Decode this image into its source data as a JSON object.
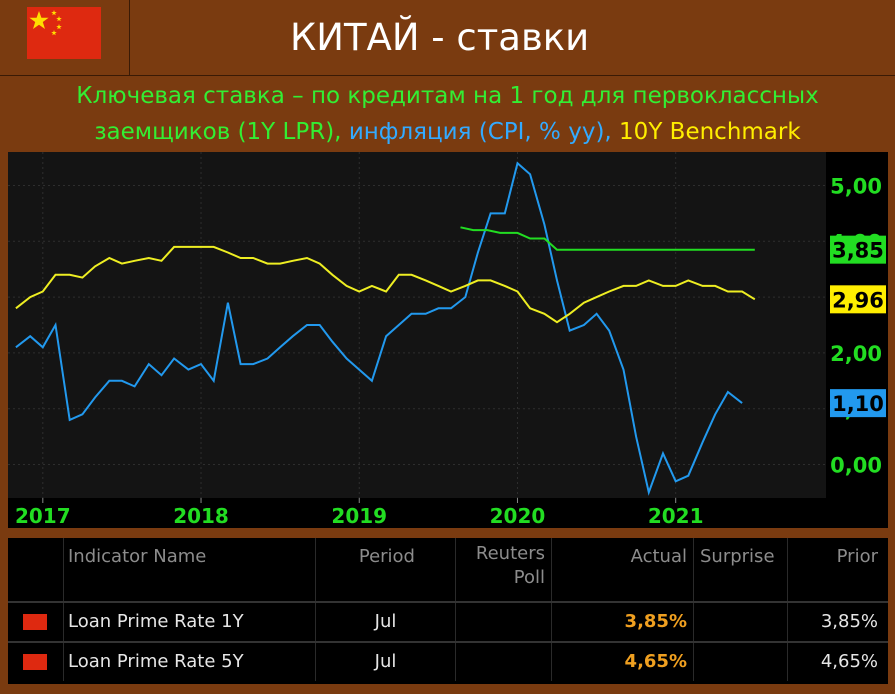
{
  "header": {
    "title": "КИТАЙ - ставки"
  },
  "subtitle": {
    "part_green": "Ключевая ставка – по кредитам на 1 год для первоклассных",
    "part_green2": "заемщиков (1Y LPR), ",
    "part_blue": "инфляция (CPI, % yy), ",
    "part_yellow": "10Y Benchmark"
  },
  "colors": {
    "background": "#7a3b10",
    "lpr": "#22dd22",
    "cpi": "#2299ee",
    "bond": "#eeee22"
  },
  "chart_data": {
    "type": "line",
    "x_labels": [
      "2017",
      "2018",
      "2019",
      "2020",
      "2021"
    ],
    "y_tick_labels": [
      "5,00",
      "4,00",
      "3,00",
      "2,00",
      "1,00",
      "0,00"
    ],
    "ylim": [
      -0.6,
      5.6
    ],
    "grid": true,
    "end_labels": [
      {
        "series": "1Y LPR",
        "text": "3,85",
        "value": 3.85
      },
      {
        "series": "10Y Benchmark",
        "text": "2,96",
        "value": 2.96
      },
      {
        "series": "CPI",
        "text": "1,10",
        "value": 1.1
      }
    ],
    "series": [
      {
        "key": "cpi",
        "points": [
          [
            2016.83,
            2.1
          ],
          [
            2016.92,
            2.3
          ],
          [
            2017.0,
            2.1
          ],
          [
            2017.08,
            2.5
          ],
          [
            2017.17,
            0.8
          ],
          [
            2017.25,
            0.9
          ],
          [
            2017.33,
            1.2
          ],
          [
            2017.42,
            1.5
          ],
          [
            2017.5,
            1.5
          ],
          [
            2017.58,
            1.4
          ],
          [
            2017.67,
            1.8
          ],
          [
            2017.75,
            1.6
          ],
          [
            2017.83,
            1.9
          ],
          [
            2017.92,
            1.7
          ],
          [
            2018.0,
            1.8
          ],
          [
            2018.08,
            1.5
          ],
          [
            2018.17,
            2.9
          ],
          [
            2018.25,
            1.8
          ],
          [
            2018.33,
            1.8
          ],
          [
            2018.42,
            1.9
          ],
          [
            2018.5,
            2.1
          ],
          [
            2018.58,
            2.3
          ],
          [
            2018.67,
            2.5
          ],
          [
            2018.75,
            2.5
          ],
          [
            2018.83,
            2.2
          ],
          [
            2018.92,
            1.9
          ],
          [
            2019.0,
            1.7
          ],
          [
            2019.08,
            1.5
          ],
          [
            2019.17,
            2.3
          ],
          [
            2019.25,
            2.5
          ],
          [
            2019.33,
            2.7
          ],
          [
            2019.42,
            2.7
          ],
          [
            2019.5,
            2.8
          ],
          [
            2019.58,
            2.8
          ],
          [
            2019.67,
            3.0
          ],
          [
            2019.75,
            3.8
          ],
          [
            2019.83,
            4.5
          ],
          [
            2019.92,
            4.5
          ],
          [
            2020.0,
            5.4
          ],
          [
            2020.08,
            5.2
          ],
          [
            2020.17,
            4.3
          ],
          [
            2020.25,
            3.3
          ],
          [
            2020.33,
            2.4
          ],
          [
            2020.42,
            2.5
          ],
          [
            2020.5,
            2.7
          ],
          [
            2020.58,
            2.4
          ],
          [
            2020.67,
            1.7
          ],
          [
            2020.75,
            0.5
          ],
          [
            2020.83,
            -0.5
          ],
          [
            2020.92,
            0.2
          ],
          [
            2021.0,
            -0.3
          ],
          [
            2021.08,
            -0.2
          ],
          [
            2021.17,
            0.4
          ],
          [
            2021.25,
            0.9
          ],
          [
            2021.33,
            1.3
          ],
          [
            2021.42,
            1.1
          ]
        ]
      },
      {
        "key": "bond",
        "points": [
          [
            2016.83,
            2.8
          ],
          [
            2016.92,
            3.0
          ],
          [
            2017.0,
            3.1
          ],
          [
            2017.08,
            3.4
          ],
          [
            2017.17,
            3.4
          ],
          [
            2017.25,
            3.35
          ],
          [
            2017.33,
            3.55
          ],
          [
            2017.42,
            3.7
          ],
          [
            2017.5,
            3.6
          ],
          [
            2017.58,
            3.65
          ],
          [
            2017.67,
            3.7
          ],
          [
            2017.75,
            3.65
          ],
          [
            2017.83,
            3.9
          ],
          [
            2017.92,
            3.9
          ],
          [
            2018.0,
            3.9
          ],
          [
            2018.08,
            3.9
          ],
          [
            2018.17,
            3.8
          ],
          [
            2018.25,
            3.7
          ],
          [
            2018.33,
            3.7
          ],
          [
            2018.42,
            3.6
          ],
          [
            2018.5,
            3.6
          ],
          [
            2018.58,
            3.65
          ],
          [
            2018.67,
            3.7
          ],
          [
            2018.75,
            3.6
          ],
          [
            2018.83,
            3.4
          ],
          [
            2018.92,
            3.2
          ],
          [
            2019.0,
            3.1
          ],
          [
            2019.08,
            3.2
          ],
          [
            2019.17,
            3.1
          ],
          [
            2019.25,
            3.4
          ],
          [
            2019.33,
            3.4
          ],
          [
            2019.42,
            3.3
          ],
          [
            2019.5,
            3.2
          ],
          [
            2019.58,
            3.1
          ],
          [
            2019.67,
            3.2
          ],
          [
            2019.75,
            3.3
          ],
          [
            2019.83,
            3.3
          ],
          [
            2019.92,
            3.2
          ],
          [
            2020.0,
            3.1
          ],
          [
            2020.08,
            2.8
          ],
          [
            2020.17,
            2.7
          ],
          [
            2020.25,
            2.55
          ],
          [
            2020.33,
            2.7
          ],
          [
            2020.42,
            2.9
          ],
          [
            2020.5,
            3.0
          ],
          [
            2020.58,
            3.1
          ],
          [
            2020.67,
            3.2
          ],
          [
            2020.75,
            3.2
          ],
          [
            2020.83,
            3.3
          ],
          [
            2020.92,
            3.2
          ],
          [
            2021.0,
            3.2
          ],
          [
            2021.08,
            3.3
          ],
          [
            2021.17,
            3.2
          ],
          [
            2021.25,
            3.2
          ],
          [
            2021.33,
            3.1
          ],
          [
            2021.42,
            3.1
          ],
          [
            2021.5,
            2.96
          ]
        ]
      },
      {
        "key": "lpr",
        "points": [
          [
            2019.64,
            4.25
          ],
          [
            2019.72,
            4.2
          ],
          [
            2019.81,
            4.2
          ],
          [
            2019.89,
            4.15
          ],
          [
            2020.0,
            4.15
          ],
          [
            2020.08,
            4.05
          ],
          [
            2020.17,
            4.05
          ],
          [
            2020.25,
            3.85
          ],
          [
            2020.5,
            3.85
          ],
          [
            2020.75,
            3.85
          ],
          [
            2021.0,
            3.85
          ],
          [
            2021.25,
            3.85
          ],
          [
            2021.5,
            3.85
          ]
        ]
      }
    ]
  },
  "table": {
    "headers": {
      "indicator": "Indicator Name",
      "period": "Period",
      "poll_line1": "Reuters",
      "poll_line2": "Poll",
      "actual": "Actual",
      "surprise": "Surprise",
      "prior": "Prior"
    },
    "rows": [
      {
        "name": "Loan Prime Rate 1Y",
        "period": "Jul",
        "poll": "",
        "actual": "3,85%",
        "surprise": "",
        "prior": "3,85%"
      },
      {
        "name": "Loan Prime Rate 5Y",
        "period": "Jul",
        "poll": "",
        "actual": "4,65%",
        "surprise": "",
        "prior": "4,65%"
      }
    ]
  }
}
